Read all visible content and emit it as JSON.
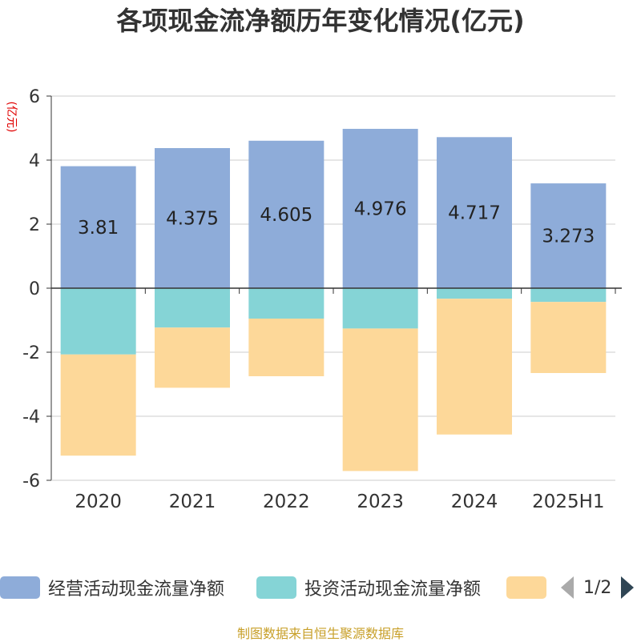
{
  "title": "各项现金流净额历年变化情况(亿元)",
  "source": "制图数据来自恒生聚源数据库",
  "pager": {
    "text": "1/2"
  },
  "legend": [
    {
      "name": "经营活动现金流量净额",
      "color": "#8eacd9"
    },
    {
      "name": "投资活动现金流量净额",
      "color": "#85d4d6"
    },
    {
      "name": "",
      "color": "#fdd899"
    }
  ],
  "chart_data": {
    "type": "bar",
    "stacked": true,
    "ylabel": "(亿元)",
    "ylim": [
      -6,
      6
    ],
    "yticks": [
      6,
      4,
      2,
      0,
      -2,
      -4,
      -6
    ],
    "grid": true,
    "legend_position": "bottom",
    "categories": [
      "2020",
      "2021",
      "2022",
      "2023",
      "2024",
      "2025H1"
    ],
    "series": [
      {
        "name": "经营活动现金流量净额",
        "color": "#8eacd9",
        "values": [
          3.81,
          4.375,
          4.605,
          4.976,
          4.717,
          3.273
        ],
        "labels": [
          "3.81",
          "4.375",
          "4.605",
          "4.976",
          "4.717",
          "3.273"
        ]
      },
      {
        "name": "投资活动现金流量净额",
        "color": "#85d4d6",
        "values": [
          -2.07,
          -1.23,
          -0.95,
          -1.26,
          -0.33,
          -0.43
        ]
      },
      {
        "name": "",
        "color": "#fdd899",
        "values": [
          -3.16,
          -1.88,
          -1.8,
          -4.45,
          -4.24,
          -2.22
        ]
      }
    ]
  }
}
